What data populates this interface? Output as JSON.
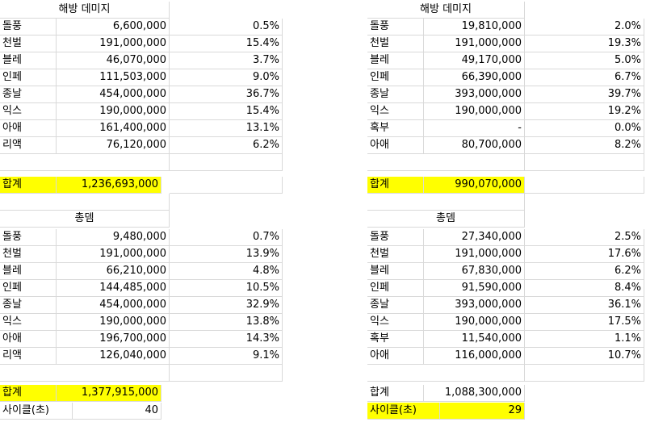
{
  "left": {
    "title1": "해방 데미지",
    "rows1": [
      {
        "name": "돌풍",
        "value": "6,600,000",
        "pct": "0.5%"
      },
      {
        "name": "천벌",
        "value": "191,000,000",
        "pct": "15.4%"
      },
      {
        "name": "블레",
        "value": "46,070,000",
        "pct": "3.7%"
      },
      {
        "name": "인페",
        "value": "111,503,000",
        "pct": "9.0%"
      },
      {
        "name": "종날",
        "value": "454,000,000",
        "pct": "36.7%"
      },
      {
        "name": "익스",
        "value": "190,000,000",
        "pct": "15.4%"
      },
      {
        "name": "아애",
        "value": "161,400,000",
        "pct": "13.1%"
      },
      {
        "name": "리액",
        "value": "76,120,000",
        "pct": "6.2%"
      }
    ],
    "total1_label": "합계",
    "total1_value": "1,236,693,000",
    "title2": "총뎀",
    "rows2": [
      {
        "name": "돌풍",
        "value": "9,480,000",
        "pct": "0.7%"
      },
      {
        "name": "천벌",
        "value": "191,000,000",
        "pct": "13.9%"
      },
      {
        "name": "블레",
        "value": "66,210,000",
        "pct": "4.8%"
      },
      {
        "name": "인페",
        "value": "144,485,000",
        "pct": "10.5%"
      },
      {
        "name": "종날",
        "value": "454,000,000",
        "pct": "32.9%"
      },
      {
        "name": "익스",
        "value": "190,000,000",
        "pct": "13.8%"
      },
      {
        "name": "아애",
        "value": "196,700,000",
        "pct": "14.3%"
      },
      {
        "name": "리액",
        "value": "126,040,000",
        "pct": "9.1%"
      }
    ],
    "total2_label": "합계",
    "total2_value": "1,377,915,000",
    "cycle_label": "사이클(초)",
    "cycle_value": "40"
  },
  "right": {
    "title1": "해방 데미지",
    "rows1": [
      {
        "name": "돌풍",
        "value": "19,810,000",
        "pct": "2.0%"
      },
      {
        "name": "천벌",
        "value": "191,000,000",
        "pct": "19.3%"
      },
      {
        "name": "블레",
        "value": "49,170,000",
        "pct": "5.0%"
      },
      {
        "name": "인페",
        "value": "66,390,000",
        "pct": "6.7%"
      },
      {
        "name": "종날",
        "value": "393,000,000",
        "pct": "39.7%"
      },
      {
        "name": "익스",
        "value": "190,000,000",
        "pct": "19.2%"
      },
      {
        "name": "혹부",
        "value": "-",
        "pct": "0.0%"
      },
      {
        "name": "아애",
        "value": "80,700,000",
        "pct": "8.2%"
      }
    ],
    "total1_label": "합계",
    "total1_value": "990,070,000",
    "title2": "총뎀",
    "rows2": [
      {
        "name": "돌풍",
        "value": "27,340,000",
        "pct": "2.5%"
      },
      {
        "name": "천벌",
        "value": "191,000,000",
        "pct": "17.6%"
      },
      {
        "name": "블레",
        "value": "67,830,000",
        "pct": "6.2%"
      },
      {
        "name": "인페",
        "value": "91,590,000",
        "pct": "8.4%"
      },
      {
        "name": "종날",
        "value": "393,000,000",
        "pct": "36.1%"
      },
      {
        "name": "익스",
        "value": "190,000,000",
        "pct": "17.5%"
      },
      {
        "name": "혹부",
        "value": "11,540,000",
        "pct": "1.1%"
      },
      {
        "name": "아애",
        "value": "116,000,000",
        "pct": "10.7%"
      }
    ],
    "total2_label": "합계",
    "total2_value": "1,088,300,000",
    "cycle_label": "사이클(초)",
    "cycle_value": "29"
  },
  "colors": {
    "highlight": "#ffff00",
    "gridline": "#d9d9d9"
  }
}
